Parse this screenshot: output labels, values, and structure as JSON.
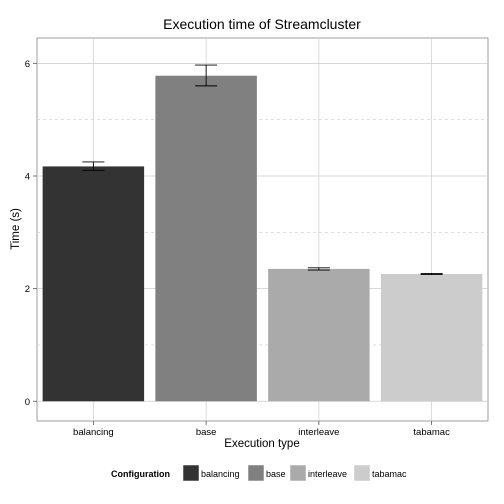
{
  "chart_data": {
    "type": "bar",
    "title": "Execution time of Streamcluster",
    "xlabel": "Execution type",
    "ylabel": "Time (s)",
    "categories": [
      "balancing",
      "base",
      "interleave",
      "tabamac"
    ],
    "values": [
      4.17,
      5.78,
      2.35,
      2.26
    ],
    "error_low": [
      4.1,
      5.6,
      2.33,
      2.25
    ],
    "error_high": [
      4.25,
      5.97,
      2.37,
      2.27
    ],
    "colors": [
      "#333333",
      "#808080",
      "#aaaaaa",
      "#cccccc"
    ],
    "ylim": [
      -0.35,
      6.45
    ],
    "yticks": [
      0,
      2,
      4,
      6
    ],
    "ytick_labels": [
      "0",
      "2",
      "4",
      "6"
    ],
    "grid": true,
    "legend": {
      "title": "Configuration",
      "position": "bottom",
      "labels": [
        "balancing",
        "base",
        "interleave",
        "tabamac"
      ]
    }
  }
}
